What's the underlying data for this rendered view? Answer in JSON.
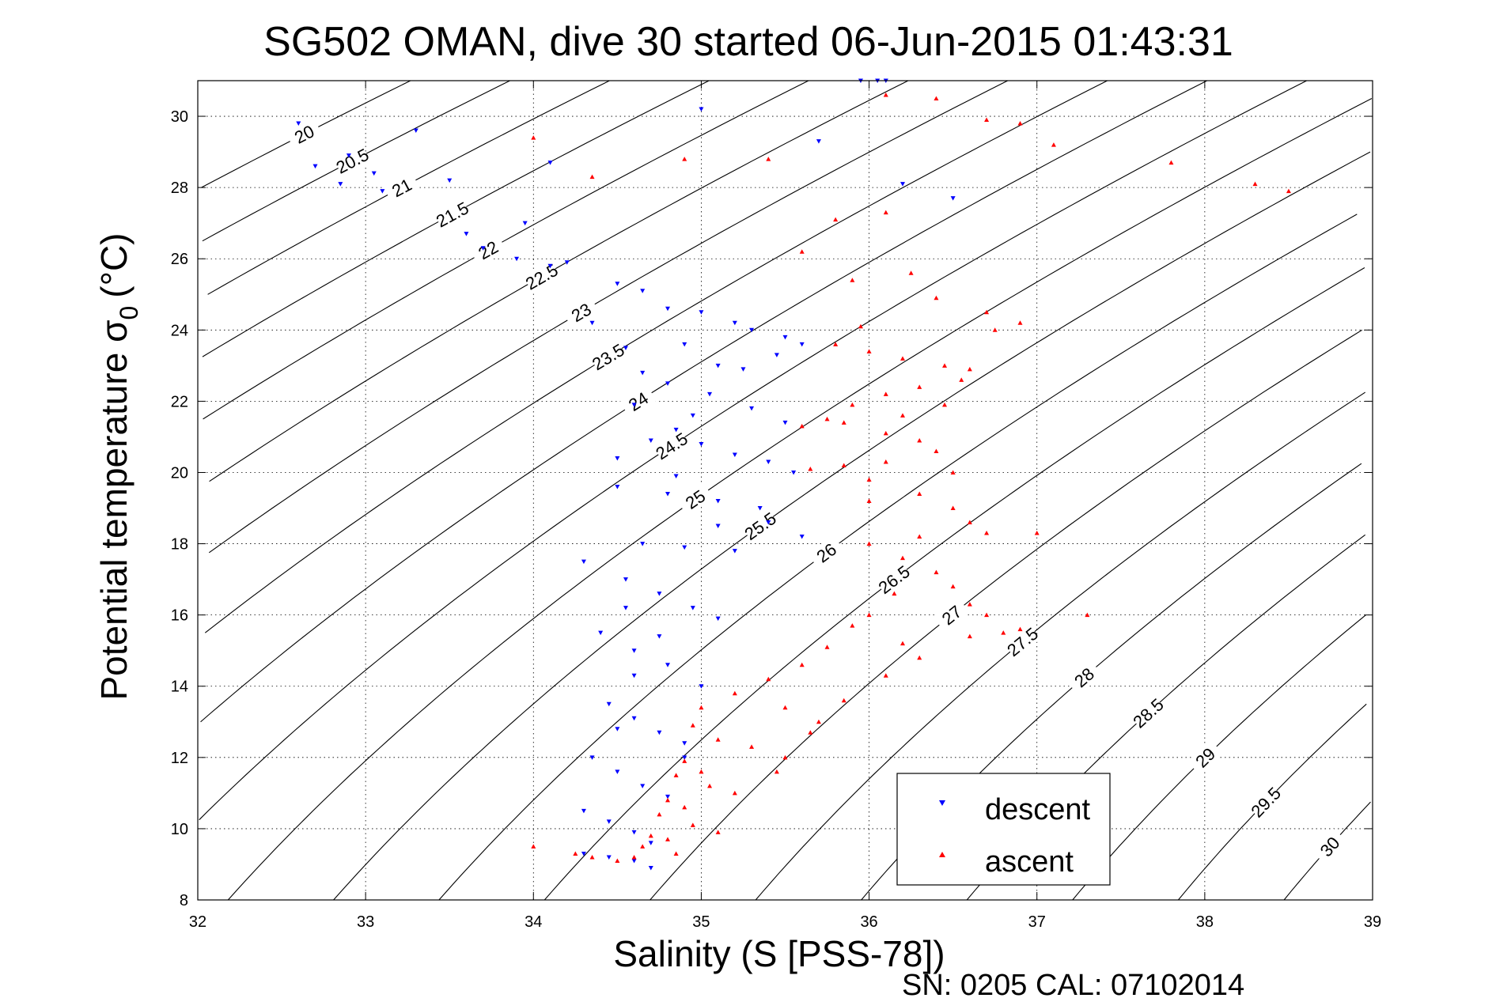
{
  "chart_data": {
    "type": "scatter",
    "title": "SG502 OMAN, dive 30 started 06-Jun-2015 01:43:31",
    "xlabel": "Salinity (S [PSS-78])",
    "ylabel_main": "Potential temperature σ",
    "ylabel_sub": "0",
    "ylabel_unit": "(°C)",
    "xlim": [
      32,
      39
    ],
    "ylim": [
      8,
      31
    ],
    "xticks": [
      "32",
      "33",
      "34",
      "35",
      "36",
      "37",
      "38",
      "39"
    ],
    "yticks": [
      "8",
      "10",
      "12",
      "14",
      "16",
      "18",
      "20",
      "22",
      "24",
      "26",
      "28",
      "30"
    ],
    "grid": true,
    "legend_position": "bottom-right",
    "footer": "SN: 0205  CAL: 07102014",
    "density_contours": [
      "20",
      "20.5",
      "21",
      "21.5",
      "22",
      "22.5",
      "23",
      "23.5",
      "24",
      "24.5",
      "25",
      "25.5",
      "26",
      "26.5",
      "27",
      "27.5",
      "28",
      "28.5",
      "29",
      "29.5",
      "30"
    ],
    "series": [
      {
        "name": "descent",
        "color": "#0000ff",
        "marker": "triangle-down",
        "points": [
          [
            32.6,
            29.8
          ],
          [
            32.7,
            28.6
          ],
          [
            32.85,
            28.1
          ],
          [
            32.9,
            28.9
          ],
          [
            33.05,
            28.4
          ],
          [
            33.1,
            27.9
          ],
          [
            33.3,
            29.6
          ],
          [
            33.5,
            28.2
          ],
          [
            33.6,
            26.7
          ],
          [
            33.7,
            26.3
          ],
          [
            33.9,
            26.0
          ],
          [
            33.95,
            27.0
          ],
          [
            34.1,
            28.7
          ],
          [
            34.1,
            25.8
          ],
          [
            34.2,
            25.9
          ],
          [
            34.35,
            24.2
          ],
          [
            34.5,
            25.3
          ],
          [
            34.65,
            25.1
          ],
          [
            34.8,
            24.6
          ],
          [
            35.0,
            24.5
          ],
          [
            35.3,
            24.0
          ],
          [
            35.5,
            23.8
          ],
          [
            35.6,
            23.6
          ],
          [
            34.55,
            23.5
          ],
          [
            34.65,
            22.8
          ],
          [
            34.8,
            22.5
          ],
          [
            35.05,
            22.2
          ],
          [
            35.3,
            21.8
          ],
          [
            35.5,
            21.4
          ],
          [
            34.7,
            20.9
          ],
          [
            34.85,
            21.2
          ],
          [
            35.0,
            20.8
          ],
          [
            35.2,
            20.5
          ],
          [
            35.4,
            20.3
          ],
          [
            35.55,
            20.0
          ],
          [
            34.5,
            19.6
          ],
          [
            34.8,
            19.4
          ],
          [
            35.1,
            19.2
          ],
          [
            35.35,
            19.0
          ],
          [
            34.3,
            17.5
          ],
          [
            34.55,
            17.0
          ],
          [
            34.75,
            16.6
          ],
          [
            34.95,
            16.2
          ],
          [
            35.1,
            15.9
          ],
          [
            34.4,
            15.5
          ],
          [
            34.6,
            15.0
          ],
          [
            34.8,
            14.6
          ],
          [
            35.0,
            14.0
          ],
          [
            34.45,
            13.5
          ],
          [
            34.6,
            13.1
          ],
          [
            34.75,
            12.7
          ],
          [
            34.9,
            12.4
          ],
          [
            34.35,
            12.0
          ],
          [
            34.5,
            11.6
          ],
          [
            34.65,
            11.2
          ],
          [
            34.8,
            10.9
          ],
          [
            34.3,
            10.5
          ],
          [
            34.45,
            10.2
          ],
          [
            34.6,
            9.9
          ],
          [
            34.7,
            9.6
          ],
          [
            34.3,
            9.3
          ],
          [
            34.45,
            9.2
          ],
          [
            34.6,
            9.1
          ],
          [
            34.7,
            8.9
          ],
          [
            35.2,
            17.8
          ],
          [
            35.4,
            18.6
          ],
          [
            35.6,
            18.2
          ],
          [
            34.9,
            17.9
          ],
          [
            35.1,
            18.5
          ],
          [
            34.95,
            21.6
          ],
          [
            34.6,
            21.9
          ],
          [
            34.5,
            20.4
          ],
          [
            35.1,
            23.0
          ],
          [
            35.25,
            22.9
          ],
          [
            35.45,
            23.3
          ],
          [
            34.9,
            23.6
          ],
          [
            35.2,
            24.2
          ],
          [
            34.9,
            12.0
          ],
          [
            34.5,
            12.8
          ],
          [
            34.6,
            14.3
          ],
          [
            34.75,
            15.4
          ],
          [
            34.55,
            16.2
          ],
          [
            34.65,
            18.0
          ],
          [
            34.85,
            19.9
          ],
          [
            36.05,
            31.0
          ],
          [
            35.95,
            31.0
          ],
          [
            36.1,
            31.0
          ],
          [
            35.0,
            30.2
          ],
          [
            35.7,
            29.3
          ],
          [
            36.5,
            27.7
          ],
          [
            36.2,
            28.1
          ]
        ]
      },
      {
        "name": "ascent",
        "color": "#ff0000",
        "marker": "triangle-up",
        "points": [
          [
            34.0,
            29.4
          ],
          [
            34.35,
            28.3
          ],
          [
            34.9,
            28.8
          ],
          [
            35.4,
            28.8
          ],
          [
            36.1,
            30.6
          ],
          [
            36.4,
            30.5
          ],
          [
            36.7,
            29.9
          ],
          [
            36.9,
            29.8
          ],
          [
            37.1,
            29.2
          ],
          [
            37.8,
            28.7
          ],
          [
            38.3,
            28.1
          ],
          [
            38.5,
            27.9
          ],
          [
            35.8,
            27.1
          ],
          [
            36.1,
            27.3
          ],
          [
            35.6,
            26.2
          ],
          [
            35.9,
            25.4
          ],
          [
            36.4,
            24.9
          ],
          [
            36.7,
            24.5
          ],
          [
            36.9,
            24.2
          ],
          [
            35.8,
            23.6
          ],
          [
            36.0,
            23.4
          ],
          [
            36.2,
            23.2
          ],
          [
            36.45,
            23.0
          ],
          [
            36.55,
            22.6
          ],
          [
            36.3,
            22.4
          ],
          [
            36.1,
            22.2
          ],
          [
            35.9,
            21.9
          ],
          [
            35.75,
            21.5
          ],
          [
            35.6,
            21.3
          ],
          [
            35.85,
            21.4
          ],
          [
            36.1,
            21.1
          ],
          [
            36.3,
            20.9
          ],
          [
            36.4,
            20.6
          ],
          [
            36.1,
            20.3
          ],
          [
            35.85,
            20.2
          ],
          [
            35.65,
            20.1
          ],
          [
            36.0,
            19.8
          ],
          [
            36.3,
            19.4
          ],
          [
            36.5,
            19.0
          ],
          [
            36.6,
            18.6
          ],
          [
            36.7,
            18.3
          ],
          [
            36.0,
            18.0
          ],
          [
            36.2,
            17.6
          ],
          [
            36.4,
            17.2
          ],
          [
            36.5,
            16.8
          ],
          [
            36.6,
            16.3
          ],
          [
            36.7,
            16.0
          ],
          [
            36.9,
            15.6
          ],
          [
            36.0,
            16.0
          ],
          [
            36.2,
            15.2
          ],
          [
            35.9,
            15.7
          ],
          [
            35.75,
            15.1
          ],
          [
            35.6,
            14.6
          ],
          [
            35.4,
            14.2
          ],
          [
            35.2,
            13.8
          ],
          [
            35.0,
            13.4
          ],
          [
            34.95,
            12.9
          ],
          [
            35.1,
            12.5
          ],
          [
            35.3,
            12.3
          ],
          [
            35.5,
            12.0
          ],
          [
            35.7,
            13.0
          ],
          [
            35.85,
            13.6
          ],
          [
            34.9,
            11.9
          ],
          [
            34.85,
            11.5
          ],
          [
            35.05,
            11.2
          ],
          [
            35.2,
            11.0
          ],
          [
            34.8,
            10.8
          ],
          [
            34.75,
            10.4
          ],
          [
            34.95,
            10.1
          ],
          [
            35.1,
            9.9
          ],
          [
            34.7,
            9.8
          ],
          [
            34.65,
            9.5
          ],
          [
            34.85,
            9.3
          ],
          [
            34.6,
            9.2
          ],
          [
            34.5,
            9.1
          ],
          [
            34.35,
            9.2
          ],
          [
            34.25,
            9.3
          ],
          [
            34.0,
            9.5
          ],
          [
            37.0,
            18.3
          ],
          [
            37.3,
            16.0
          ],
          [
            36.8,
            15.5
          ],
          [
            36.3,
            14.8
          ],
          [
            36.1,
            14.3
          ],
          [
            36.6,
            15.4
          ],
          [
            36.2,
            21.6
          ],
          [
            36.45,
            21.9
          ],
          [
            36.6,
            22.9
          ],
          [
            36.75,
            24.0
          ],
          [
            35.95,
            24.1
          ],
          [
            36.25,
            25.6
          ],
          [
            36.0,
            19.2
          ],
          [
            36.3,
            18.2
          ],
          [
            36.15,
            16.6
          ],
          [
            35.45,
            11.6
          ],
          [
            35.65,
            12.7
          ],
          [
            35.0,
            11.6
          ],
          [
            34.9,
            10.6
          ],
          [
            34.8,
            9.7
          ],
          [
            36.5,
            20.0
          ],
          [
            35.5,
            13.4
          ]
        ]
      }
    ]
  }
}
